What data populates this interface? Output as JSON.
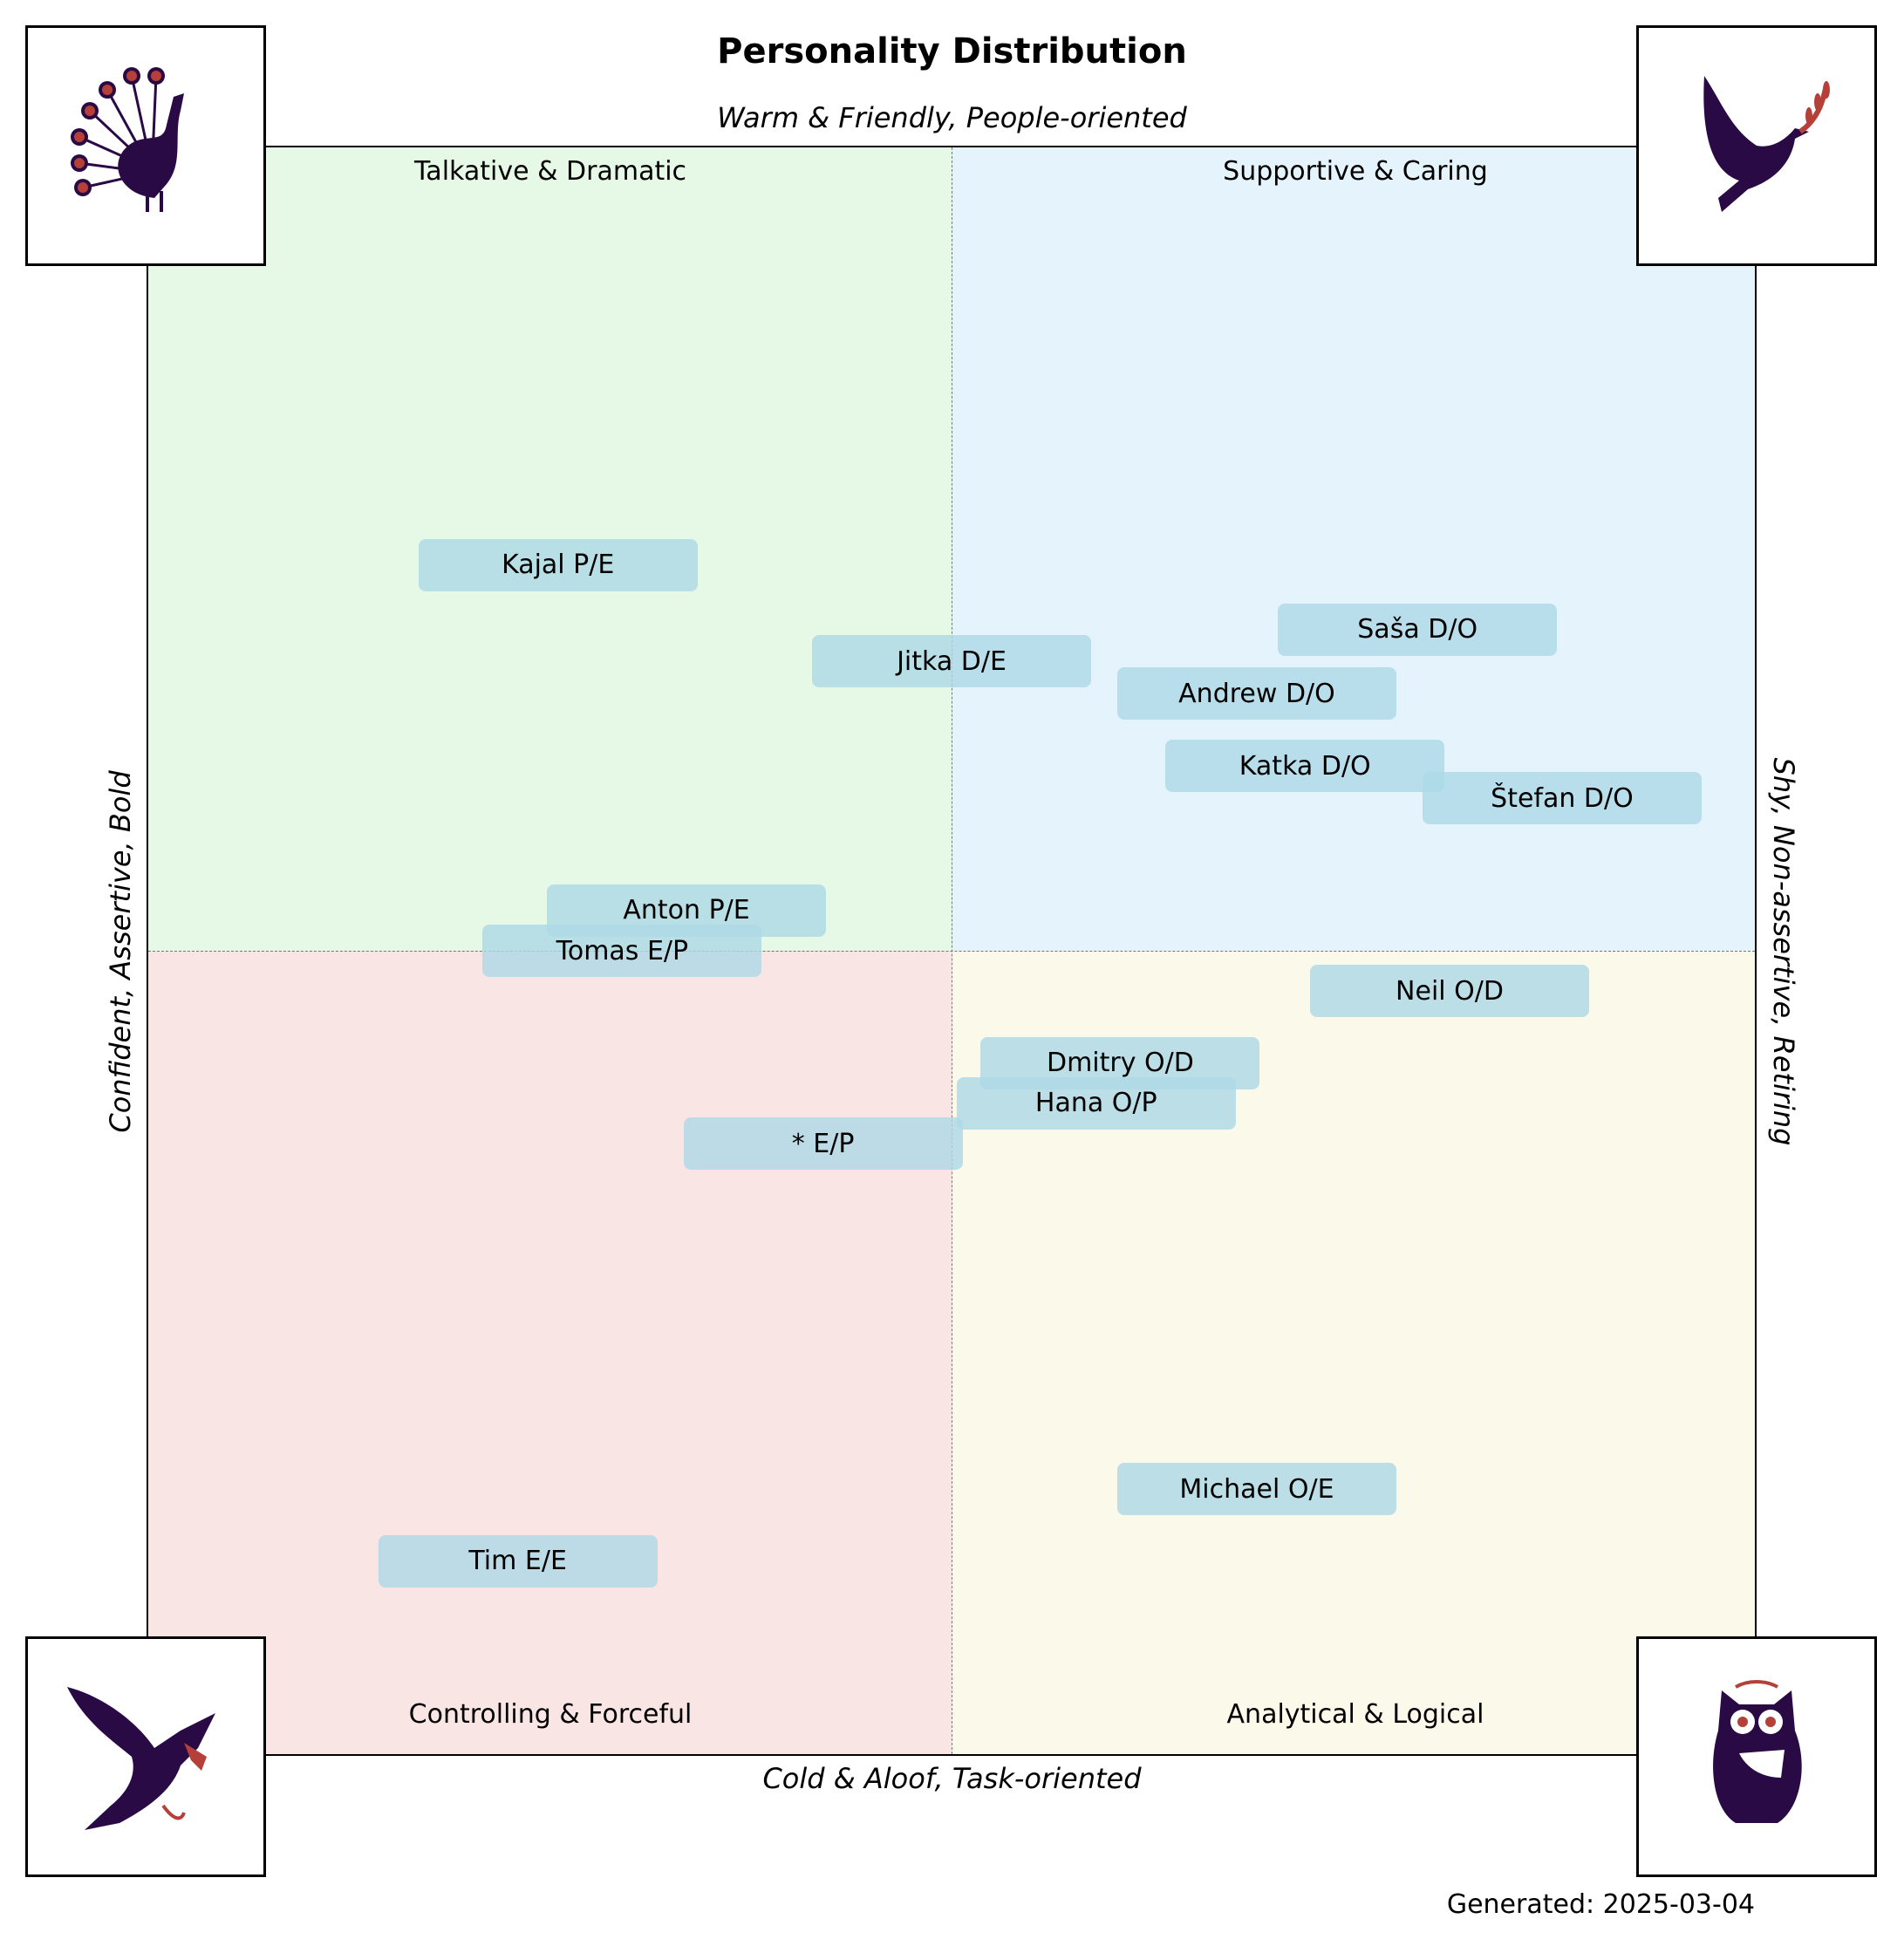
{
  "chart_data": {
    "type": "scatter",
    "title": "Personality Distribution",
    "axis_labels": {
      "top": "Warm & Friendly, People-oriented",
      "bottom": "Cold & Aloof, Task-oriented",
      "left": "Confident, Assertive, Bold",
      "right": "Shy, Non-assertive, Retiring"
    },
    "xlim": [
      -1,
      1
    ],
    "ylim": [
      -1,
      1
    ],
    "grid": false,
    "quadrants": [
      {
        "name": "top-left",
        "label": "Talkative & Dramatic",
        "color": "#e6f9e6",
        "icon": "peacock-icon"
      },
      {
        "name": "top-right",
        "label": "Supportive & Caring",
        "color": "#e5f4fc",
        "icon": "dove-icon"
      },
      {
        "name": "bottom-left",
        "label": "Controlling & Forceful",
        "color": "#fae5e5",
        "icon": "eagle-icon"
      },
      {
        "name": "bottom-right",
        "label": "Analytical & Logical",
        "color": "#fbf9ea",
        "icon": "owl-icon"
      }
    ],
    "points": [
      {
        "label": "Kajal P/E",
        "x": -0.49,
        "y": 0.48
      },
      {
        "label": "Jitka D/E",
        "x": 0.0,
        "y": 0.36
      },
      {
        "label": "Saša D/O",
        "x": 0.58,
        "y": 0.4
      },
      {
        "label": "Andrew D/O",
        "x": 0.38,
        "y": 0.32
      },
      {
        "label": "Katka D/O",
        "x": 0.44,
        "y": 0.23
      },
      {
        "label": "Štefan D/O",
        "x": 0.76,
        "y": 0.19
      },
      {
        "label": "Anton P/E",
        "x": -0.33,
        "y": 0.05
      },
      {
        "label": "Tomas E/P",
        "x": -0.41,
        "y": 0.0
      },
      {
        "label": "Neil O/D",
        "x": 0.62,
        "y": -0.05
      },
      {
        "label": "Dmitry O/D",
        "x": 0.21,
        "y": -0.14
      },
      {
        "label": "Hana O/P",
        "x": 0.18,
        "y": -0.19
      },
      {
        "label": "* E/P",
        "x": -0.16,
        "y": -0.24
      },
      {
        "label": "Michael O/E",
        "x": 0.38,
        "y": -0.67
      },
      {
        "label": "Tim E/E",
        "x": -0.54,
        "y": -0.76
      }
    ],
    "point_color": "#add8e6",
    "icon_color": "#2a0a45",
    "icon_accent": "#b5403a"
  },
  "footer": {
    "generated": "Generated: 2025-03-04"
  }
}
